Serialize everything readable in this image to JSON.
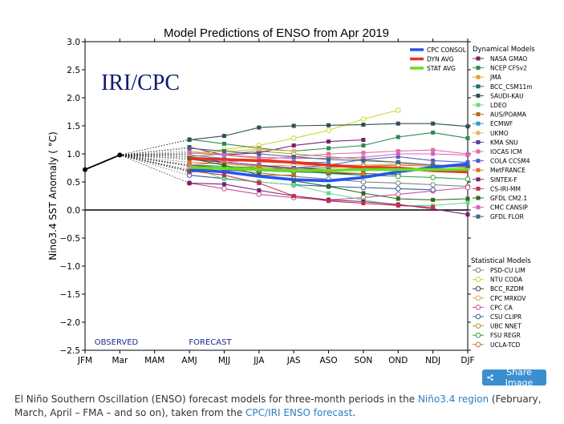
{
  "chart_data": {
    "type": "line",
    "title": "Model Predictions of ENSO from Apr 2019",
    "watermark": "IRI/CPC",
    "ylabel": "Nino3.4 SST Anomaly ( °C)",
    "ylim": [
      -2.5,
      3.0
    ],
    "yticks": [
      "3.0",
      "2.5",
      "2.0",
      "1.5",
      "1.0",
      "0.5",
      "0.0",
      "−0.5",
      "−1.0",
      "−1.5",
      "−2.0",
      "−2.5"
    ],
    "categories": [
      "JFM",
      "Mar",
      "MAM",
      "AMJ",
      "MJJ",
      "JJA",
      "JAS",
      "ASO",
      "SON",
      "OND",
      "NDJ",
      "DJF"
    ],
    "observed_label": "OBSERVED",
    "forecast_label": "FORECAST",
    "observed": [
      0.72,
      0.98
    ],
    "consensus_legend": [
      {
        "name": "CPC CONSOL",
        "color": "#2255ee"
      },
      {
        "name": "DYN AVG",
        "color": "#e83323"
      },
      {
        "name": "STAT AVG",
        "color": "#66dd22"
      }
    ],
    "consensus_series": [
      {
        "name": "CPC CONSOL",
        "color": "#2255ee",
        "values": [
          0.72,
          0.68,
          0.6,
          0.54,
          0.52,
          0.58,
          0.68,
          0.76,
          0.82
        ]
      },
      {
        "name": "DYN AVG",
        "color": "#e83323",
        "values": [
          0.92,
          0.9,
          0.88,
          0.85,
          0.8,
          0.76,
          0.75,
          0.7,
          0.68
        ]
      },
      {
        "name": "STAT AVG",
        "color": "#66dd22",
        "values": [
          0.76,
          0.74,
          0.72,
          0.7,
          0.71,
          0.72,
          0.72,
          0.72,
          0.72
        ]
      }
    ],
    "dynamical_title": "Dynamical Models",
    "dynamical": [
      {
        "name": "NASA GMAO",
        "color": "#7a1f6e",
        "values": [
          1.12,
          0.98,
          1.02,
          1.15,
          1.22,
          1.25,
          null,
          null,
          null
        ]
      },
      {
        "name": "NCEP CFSv2",
        "color": "#2e8a4e",
        "values": [
          1.26,
          1.18,
          1.1,
          1.05,
          1.1,
          1.15,
          1.3,
          1.38,
          1.28
        ]
      },
      {
        "name": "JMA",
        "color": "#e8a020",
        "values": [
          1.05,
          0.98,
          0.92,
          0.85,
          null,
          null,
          null,
          null,
          null
        ]
      },
      {
        "name": "BCC_CSM11m",
        "color": "#1f6e6e",
        "values": [
          0.95,
          0.85,
          0.8,
          0.72,
          0.66,
          0.62,
          null,
          null,
          null
        ]
      },
      {
        "name": "SAUDI-KAU",
        "color": "#2f4f4f",
        "values": [
          1.25,
          1.32,
          1.47,
          1.5,
          1.51,
          1.52,
          1.54,
          1.54,
          1.49
        ]
      },
      {
        "name": "LDEO",
        "color": "#66dd88",
        "values": [
          0.78,
          0.55,
          0.5,
          0.45,
          0.3,
          0.18,
          0.08,
          0.08,
          0.13
        ]
      },
      {
        "name": "AUS/POAMA",
        "color": "#b07020",
        "values": [
          0.7,
          0.68,
          0.62,
          0.62,
          null,
          null,
          null,
          null,
          null
        ]
      },
      {
        "name": "ECMWF",
        "color": "#2a9ad8",
        "values": [
          0.98,
          0.92,
          0.88,
          0.85,
          0.85,
          null,
          null,
          null,
          null
        ]
      },
      {
        "name": "UKMO",
        "color": "#f0b060",
        "values": [
          1.0,
          1.05,
          1.08,
          1.05,
          null,
          null,
          null,
          null,
          null
        ]
      },
      {
        "name": "KMA SNU",
        "color": "#5a3a9a",
        "values": [
          0.9,
          0.85,
          0.8,
          0.75,
          0.72,
          0.7,
          null,
          null,
          null
        ]
      },
      {
        "name": "IOCAS ICM",
        "color": "#e070a0",
        "values": [
          0.8,
          0.85,
          0.9,
          0.95,
          1.0,
          1.02,
          1.05,
          1.07,
          1.0
        ]
      },
      {
        "name": "COLA CCSM4",
        "color": "#5858c8",
        "values": [
          0.68,
          0.7,
          0.72,
          0.75,
          0.8,
          0.9,
          0.95,
          0.88,
          0.85
        ]
      },
      {
        "name": "MetFRANCE",
        "color": "#e87020",
        "values": [
          0.85,
          0.82,
          0.78,
          0.72,
          0.68,
          0.65,
          null,
          null,
          null
        ]
      },
      {
        "name": "SINTEX-F",
        "color": "#7a1f6e",
        "values": [
          0.48,
          0.46,
          0.35,
          0.25,
          0.18,
          0.15,
          0.1,
          0.02,
          -0.08
        ]
      },
      {
        "name": "CS-IRI-MM",
        "color": "#c03050",
        "values": [
          0.7,
          0.62,
          0.48,
          0.25,
          0.16,
          0.12,
          0.08,
          0.05,
          null
        ]
      },
      {
        "name": "GFDL CM2.1",
        "color": "#2e6a1e",
        "values": [
          0.92,
          0.8,
          0.62,
          0.52,
          0.42,
          0.3,
          0.2,
          0.18,
          0.2
        ]
      },
      {
        "name": "CMC CANSIP",
        "color": "#d860c8",
        "values": [
          1.02,
          0.98,
          0.94,
          0.92,
          0.92,
          0.94,
          1.0,
          1.0,
          0.98
        ]
      },
      {
        "name": "GFDL FLOR",
        "color": "#3a6a8a",
        "values": [
          1.1,
          1.05,
          1.0,
          0.95,
          0.9,
          0.88,
          0.85,
          0.8,
          0.78
        ]
      }
    ],
    "statistical_title": "Statistical Models",
    "statistical": [
      {
        "name": "PSD-CU LIM",
        "color": "#808080",
        "values": [
          0.78,
          0.72,
          0.66,
          0.6,
          0.55,
          0.5,
          0.48,
          0.45,
          0.42
        ]
      },
      {
        "name": "NTU CODA",
        "color": "#c8d830",
        "values": [
          1.0,
          1.08,
          1.15,
          1.28,
          1.42,
          1.62,
          1.78,
          null,
          null
        ]
      },
      {
        "name": "BCC_RZDM",
        "color": "#404040",
        "values": [
          0.8,
          0.75,
          0.7,
          0.68,
          0.66,
          0.65,
          0.63,
          null,
          null
        ]
      },
      {
        "name": "CPC MRKOV",
        "color": "#e8a040",
        "values": [
          0.72,
          0.74,
          0.78,
          0.8,
          0.8,
          0.8,
          0.82,
          0.8,
          0.78
        ]
      },
      {
        "name": "CPC CA",
        "color": "#c850a0",
        "values": [
          0.48,
          0.38,
          0.28,
          0.22,
          0.18,
          0.22,
          0.28,
          0.34,
          0.4
        ]
      },
      {
        "name": "CSU CLIPR",
        "color": "#3a5aa0",
        "values": [
          0.62,
          0.56,
          0.5,
          0.45,
          0.42,
          0.4,
          0.38,
          0.36,
          null
        ]
      },
      {
        "name": "UBC NNET",
        "color": "#a0a020",
        "values": [
          0.95,
          1.0,
          1.05,
          1.0,
          0.95,
          0.9,
          0.85,
          0.8,
          0.78
        ]
      },
      {
        "name": "FSU REGR",
        "color": "#30a040",
        "values": [
          0.8,
          0.78,
          0.75,
          0.7,
          0.65,
          0.62,
          0.6,
          0.58,
          0.55
        ]
      },
      {
        "name": "UCLA-TCD",
        "color": "#c07830",
        "values": [
          0.68,
          0.7,
          0.72,
          0.74,
          0.76,
          0.78,
          0.8,
          0.78,
          0.76
        ]
      }
    ]
  },
  "share_label": "Share Image",
  "caption": {
    "part1": "El Niño Southern Oscillation (ENSO) forecast models for three-month periods in the ",
    "link1": "Niño3.4 region",
    "part2": " (February, March, April – FMA – and so on), taken from the ",
    "link2": "CPC/IRI ENSO forecast",
    "part3": "."
  }
}
